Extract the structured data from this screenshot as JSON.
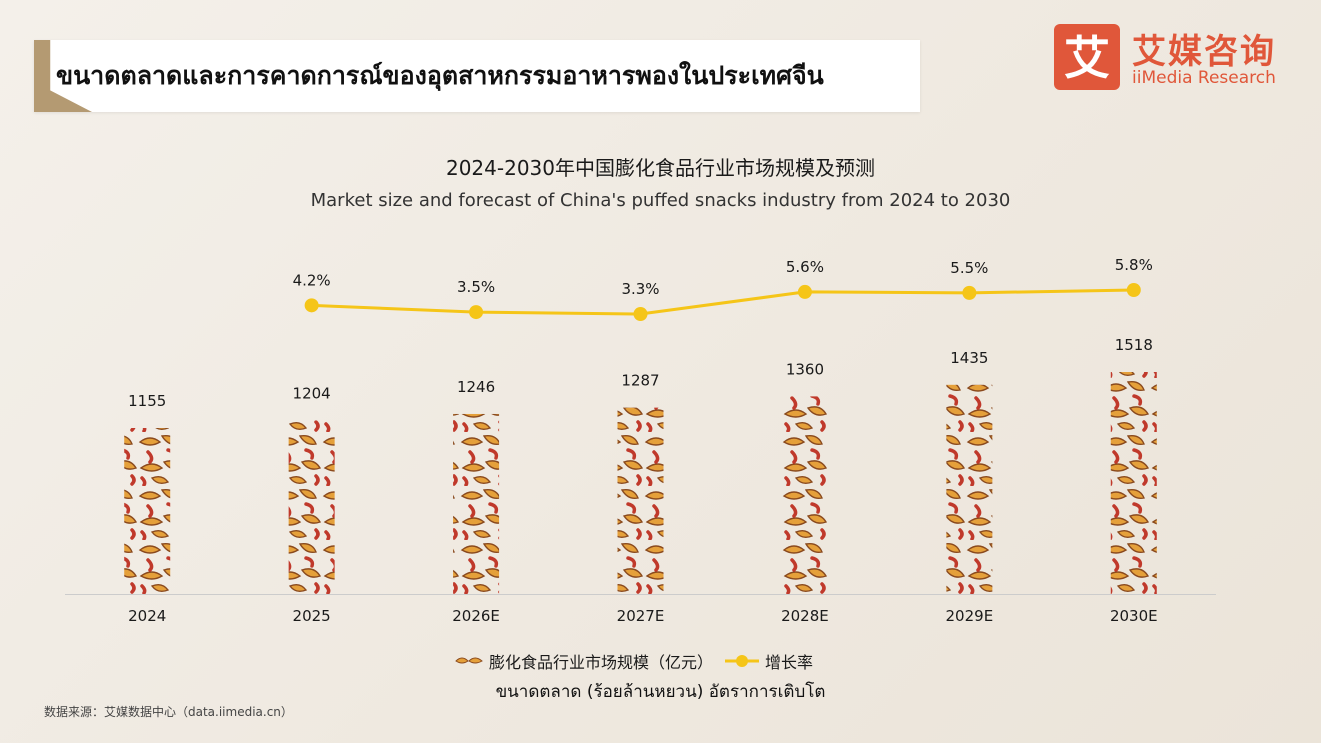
{
  "header": {
    "title": "ขนาดตลาดและการคาดการณ์ของอุตสาหกรรมอาหารพองในประเทศจีน"
  },
  "logo": {
    "glyph": "艾",
    "cn": "艾媒咨询",
    "en": "iiMedia Research"
  },
  "chart_data": {
    "type": "bar",
    "title": "2024-2030年中国膨化食品行业市场规模及预测",
    "subtitle": "Market size and forecast of China's puffed snacks industry from 2024 to 2030",
    "categories": [
      "2024",
      "2025",
      "2026E",
      "2027E",
      "2028E",
      "2029E",
      "2030E"
    ],
    "series": [
      {
        "name": "膨化食品行业市场规模（亿元）",
        "type": "bar",
        "values": [
          1155,
          1204,
          1246,
          1287,
          1360,
          1435,
          1518
        ],
        "labels": [
          "1155",
          "1204",
          "1246",
          "1287",
          "1360",
          "1435",
          "1518"
        ]
      },
      {
        "name": "增长率",
        "type": "line",
        "values": [
          null,
          4.2,
          3.5,
          3.3,
          5.6,
          5.5,
          5.8
        ],
        "labels": [
          "",
          "4.2%",
          "3.5%",
          "3.3%",
          "5.6%",
          "5.5%",
          "5.8%"
        ]
      }
    ],
    "ylim": [
      0,
      1600
    ],
    "growth_ylim": [
      0,
      6
    ],
    "xlabel": "",
    "ylabel": "",
    "legend_position": "bottom-center",
    "grid": false,
    "colors": {
      "chip_orange": "#e5a03a",
      "chip_dark": "#8a4a1e",
      "stick_red": "#c0392b",
      "line": "#f5c518",
      "axis": "#cccccc"
    }
  },
  "legend": {
    "bar_label": "膨化食品行业市场规模（亿元）",
    "line_label": "增长率"
  },
  "axis_note": "ขนาดตลาด (ร้อยล้านหยวน) อัตราการเติบโต",
  "source": "数据来源：艾媒数据中心（data.iimedia.cn）"
}
